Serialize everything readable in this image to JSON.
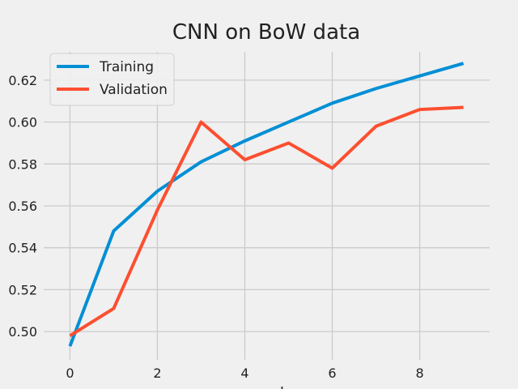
{
  "chart_data": {
    "type": "line",
    "title": "CNN on BoW data",
    "xlabel": "epoch",
    "ylabel": "",
    "x": [
      0,
      1,
      2,
      3,
      4,
      5,
      6,
      7,
      8,
      9
    ],
    "series": [
      {
        "name": "Training",
        "color": "#008fd5",
        "values": [
          0.493,
          0.548,
          0.567,
          0.581,
          0.591,
          0.6,
          0.609,
          0.616,
          0.622,
          0.628
        ]
      },
      {
        "name": "Validation",
        "color": "#fc4f30",
        "values": [
          0.498,
          0.511,
          0.558,
          0.6,
          0.582,
          0.59,
          0.578,
          0.598,
          0.606,
          0.607
        ]
      }
    ],
    "xticks": [
      0,
      2,
      4,
      6,
      8
    ],
    "yticks": [
      0.5,
      0.52,
      0.54,
      0.56,
      0.58,
      0.6,
      0.62
    ],
    "ytick_labels": [
      "0.50",
      "0.52",
      "0.54",
      "0.56",
      "0.58",
      "0.60",
      "0.62"
    ],
    "xlim": [
      -0.6,
      9.6
    ],
    "ylim": [
      0.4865,
      0.6335
    ],
    "grid": true,
    "legend_position": "top-left",
    "background_color": "#f0f0f0"
  }
}
